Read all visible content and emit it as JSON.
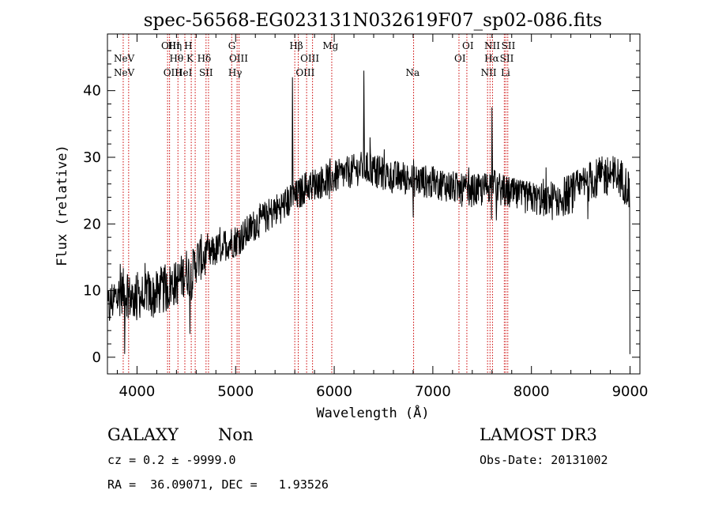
{
  "chart_data": {
    "type": "line",
    "title": "spec-56568-EG023131N032619F07_sp02-086.fits",
    "xlabel": "Wavelength (Å)",
    "ylabel": "Flux (relative)",
    "xlim": [
      3700,
      9100
    ],
    "ylim": [
      -2.5,
      48.5
    ],
    "xticks": [
      4000,
      5000,
      6000,
      7000,
      8000,
      9000
    ],
    "yticks": [
      0,
      10,
      20,
      30,
      40
    ],
    "grid": false,
    "colors": {
      "spectrum": "#000000",
      "line_markers": "#cc0000"
    },
    "series": [
      {
        "x": [
          3700,
          3750,
          3800,
          3850,
          3900,
          3950,
          4000,
          4050,
          4100,
          4150,
          4200,
          4250,
          4300,
          4350,
          4400,
          4450,
          4500,
          4550,
          4600,
          4650,
          4700,
          4800,
          4900,
          5000,
          5100,
          5200,
          5300,
          5400,
          5500,
          5600,
          5650,
          5700,
          5800,
          5900,
          6000,
          6100,
          6200,
          6300,
          6400,
          6500,
          6600,
          6700,
          6800,
          6900,
          7000,
          7100,
          7200,
          7300,
          7400,
          7500,
          7600,
          7700,
          7800,
          7900,
          8000,
          8100,
          8200,
          8300,
          8400,
          8500,
          8600,
          8700,
          8800,
          8900,
          8950,
          9000
        ],
        "values": [
          7,
          8.5,
          9,
          10,
          9.5,
          8.5,
          9.5,
          9,
          10,
          9,
          9.5,
          10,
          10,
          11,
          11,
          12,
          13,
          12,
          14.5,
          15,
          15,
          16,
          17,
          17.5,
          18.5,
          20,
          21,
          22,
          23,
          24,
          24.5,
          25.5,
          26,
          26.5,
          27,
          27.5,
          28,
          28.5,
          28,
          27.5,
          27,
          27,
          26.5,
          26.5,
          26,
          26,
          25.5,
          25,
          25,
          25,
          26,
          25,
          24.5,
          24,
          24,
          23.5,
          23.5,
          24,
          24.5,
          25.5,
          26.5,
          27,
          27.5,
          27,
          26,
          25
        ],
        "noise": 2.8,
        "peaks": [
          {
            "x": 5577,
            "value": 42
          },
          {
            "x": 6300,
            "value": 43
          },
          {
            "x": 6364,
            "value": 33
          },
          {
            "x": 7600,
            "value": 37.5
          },
          {
            "x": 3830,
            "value": 14
          },
          {
            "x": 3875,
            "value": 0.5
          },
          {
            "x": 4535,
            "value": 3.5
          },
          {
            "x": 6800,
            "value": 21
          },
          {
            "x": 9000,
            "value": 0.5
          }
        ]
      }
    ],
    "spectral_lines": [
      {
        "x": 3869,
        "label": "NeV",
        "row": 2
      },
      {
        "x": 3869,
        "label": "NeV",
        "row": 4
      },
      {
        "x": 4341,
        "label": "OIII",
        "row": 1
      },
      {
        "x": 4363,
        "label": "OIII",
        "row": 4
      },
      {
        "x": 4384,
        "label": "Hη",
        "row": 1
      },
      {
        "x": 4400,
        "label": "Hθ",
        "row": 2
      },
      {
        "x": 4471,
        "label": "HeI",
        "row": 4
      },
      {
        "x": 4520,
        "label": "H",
        "row": 1
      },
      {
        "x": 4537,
        "label": "K",
        "row": 2
      },
      {
        "x": 4681,
        "label": "Hδ",
        "row": 2
      },
      {
        "x": 4700,
        "label": "SII",
        "row": 4
      },
      {
        "x": 4962,
        "label": "G",
        "row": 1
      },
      {
        "x": 5030,
        "label": "OIII",
        "row": 2
      },
      {
        "x": 4995,
        "label": "Hγ",
        "row": 4
      },
      {
        "x": 5615,
        "label": "Hβ",
        "row": 1
      },
      {
        "x": 5752,
        "label": "OIII",
        "row": 2
      },
      {
        "x": 5706,
        "label": "OIII",
        "row": 4
      },
      {
        "x": 5962,
        "label": "Mg",
        "row": 1
      },
      {
        "x": 6795,
        "label": "Na",
        "row": 4
      },
      {
        "x": 7356,
        "label": "OI",
        "row": 1
      },
      {
        "x": 7276,
        "label": "OI",
        "row": 2
      },
      {
        "x": 7602,
        "label": "NII",
        "row": 1
      },
      {
        "x": 7597,
        "label": "Hα",
        "row": 2
      },
      {
        "x": 7567,
        "label": "NII",
        "row": 4
      },
      {
        "x": 7766,
        "label": "SII",
        "row": 1
      },
      {
        "x": 7750,
        "label": "SII",
        "row": 2
      },
      {
        "x": 7737,
        "label": "Li",
        "row": 4
      }
    ],
    "marker_lines": [
      3860,
      3915,
      4310,
      4330,
      4415,
      4485,
      4550,
      4590,
      4700,
      4725,
      4960,
      5015,
      5035,
      5600,
      5635,
      5720,
      5780,
      5975,
      6805,
      7265,
      7345,
      7555,
      7580,
      7605,
      7725,
      7740,
      7760
    ]
  },
  "info": {
    "object_class": "GALAXY",
    "subclass": "Non",
    "survey": "LAMOST DR3",
    "redshift_line": "cz = 0.2 ± -9999.0",
    "obs_date": "Obs-Date: 20131002",
    "coords": "RA =  36.09071, DEC =   1.93526"
  }
}
